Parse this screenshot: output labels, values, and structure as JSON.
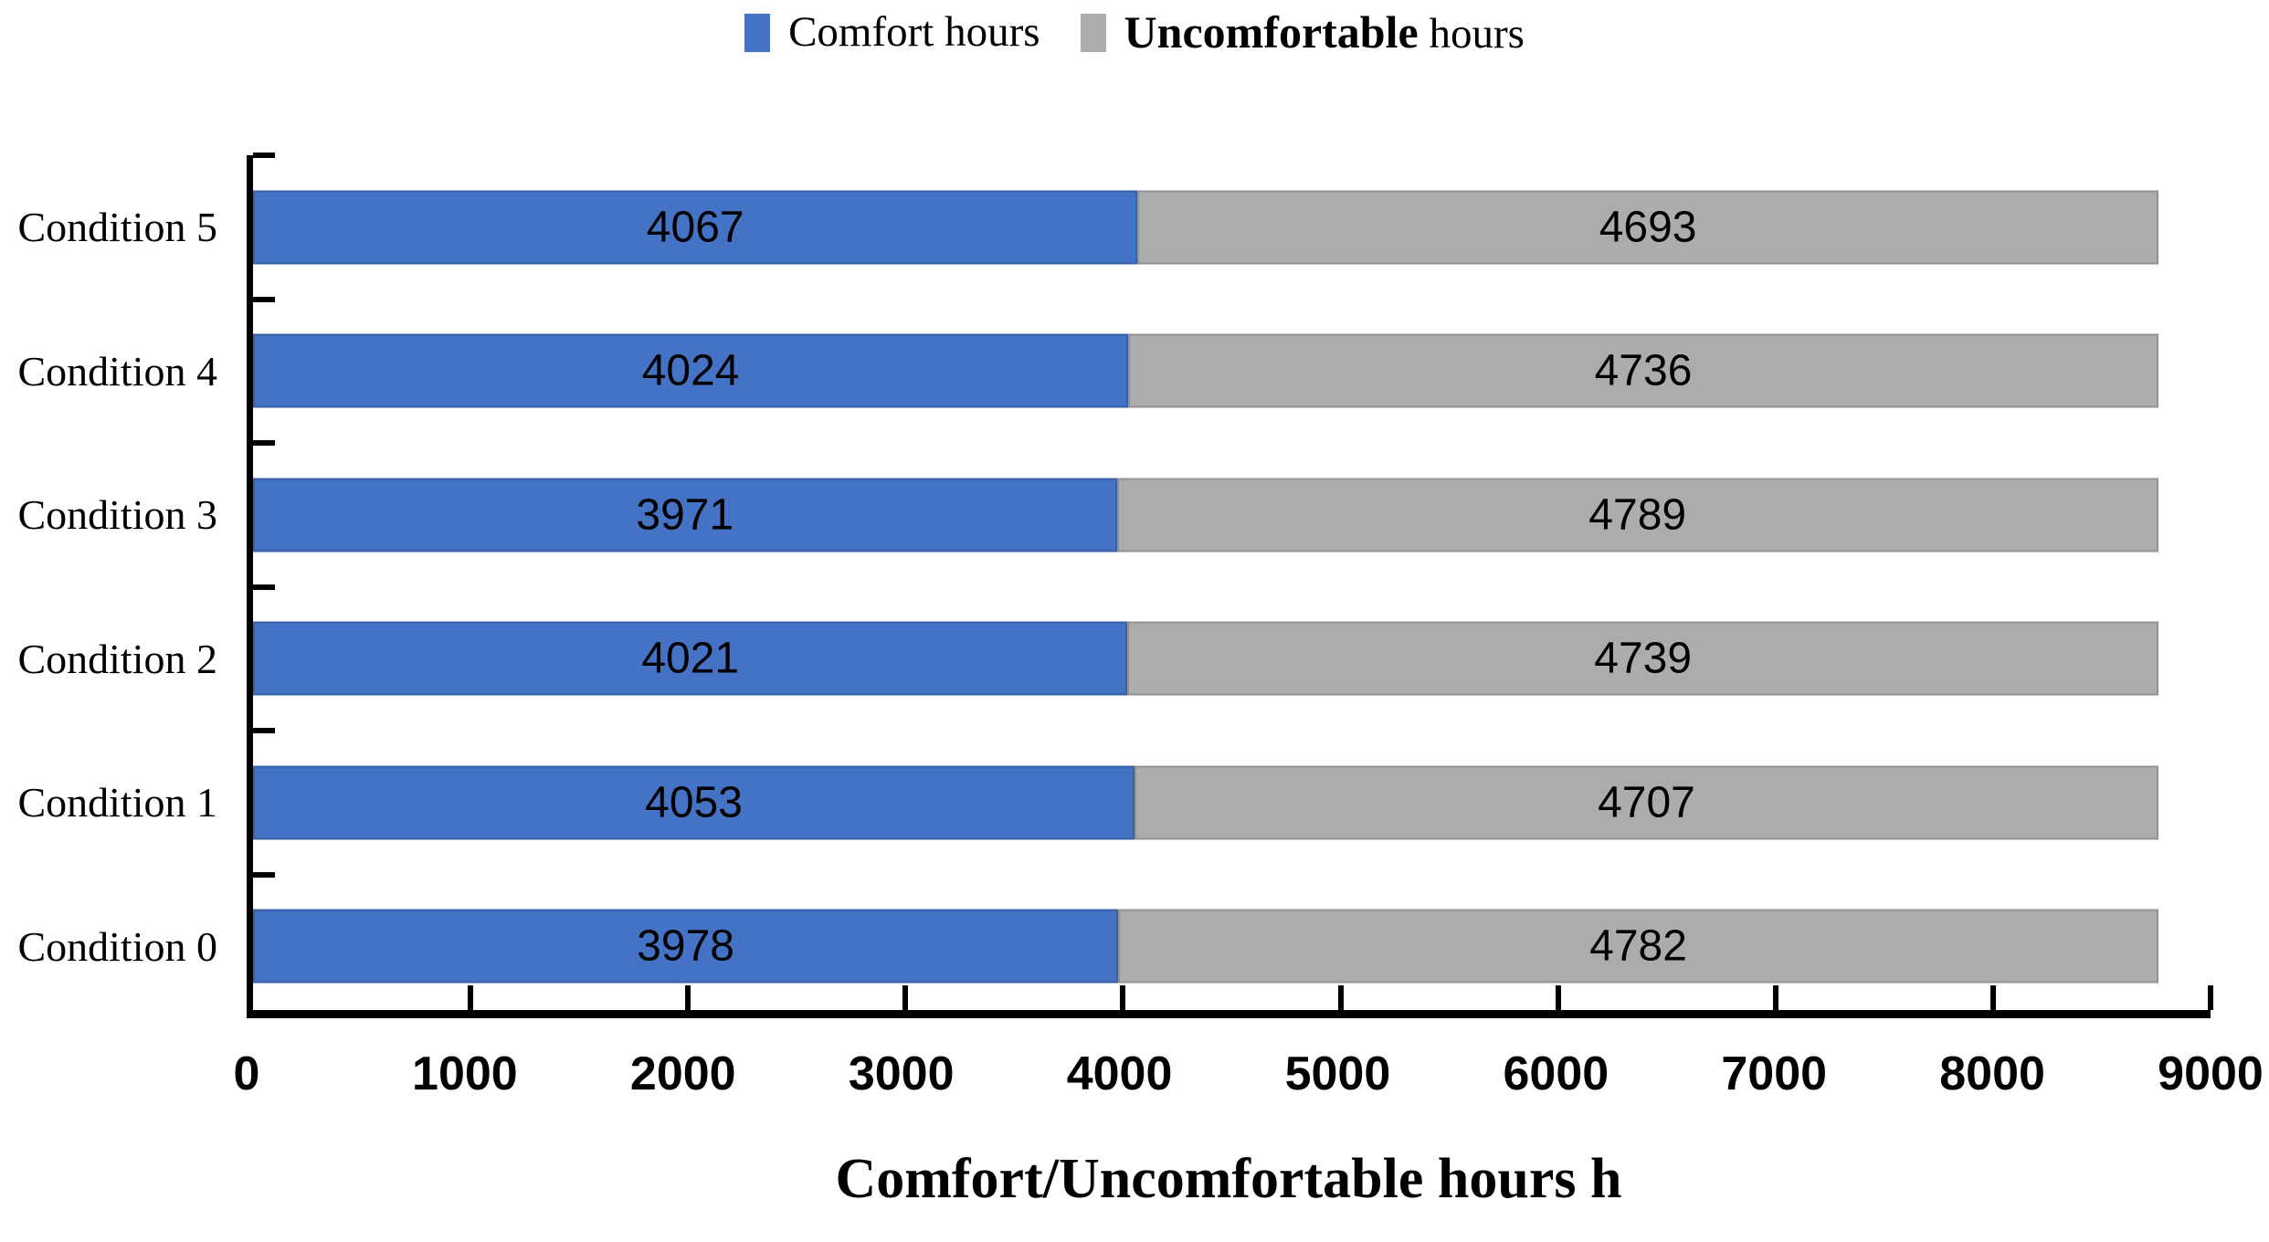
{
  "legend": {
    "items": [
      {
        "label": "Comfort hours",
        "color": "#4472C4"
      },
      {
        "word_bold": "Uncomfortable",
        "word_rest": "hours",
        "color": "#ACACAC"
      }
    ]
  },
  "chart_data": {
    "type": "bar",
    "orientation": "horizontal",
    "stacked": true,
    "categories_top_to_bottom": [
      "Condition 5",
      "Condition 4",
      "Condition 3",
      "Condition 2",
      "Condition 1",
      "Condition 0"
    ],
    "series": [
      {
        "name": "Comfort hours",
        "color": "#4472C4",
        "values": [
          4067,
          4024,
          3971,
          4021,
          4053,
          3978
        ]
      },
      {
        "name": "Uncomfortable hours",
        "color": "#ACACAC",
        "values": [
          4693,
          4736,
          4789,
          4739,
          4707,
          4782
        ]
      }
    ],
    "bar_totals": [
      8760,
      8760,
      8760,
      8760,
      8760,
      8760
    ],
    "bar_labels": true,
    "xlabel": "Comfort/Uncomfortable hours h",
    "xticks": [
      0,
      1000,
      2000,
      3000,
      4000,
      5000,
      6000,
      7000,
      8000,
      9000
    ],
    "xlim": [
      0,
      9000
    ],
    "grid": false,
    "legend_position": "top",
    "axis_color": "#000000",
    "background_color": "#FFFFFF",
    "label_color": "#000000"
  }
}
